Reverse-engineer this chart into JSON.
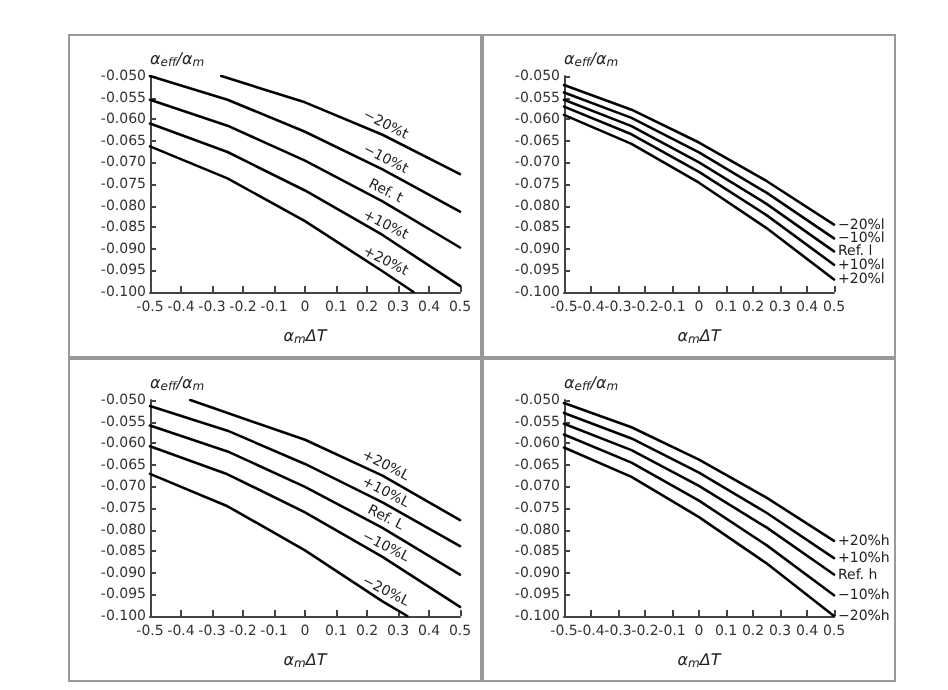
{
  "chart_data": [
    {
      "type": "line",
      "xlabel": "α$_{m}$ΔT",
      "ylabel": "α$_{eff}$/α$_{m}$",
      "xlim": [
        -0.5,
        0.5
      ],
      "xticks": [
        -0.5,
        -0.4,
        -0.3,
        -0.2,
        -0.1,
        0,
        0.1,
        0.2,
        0.3,
        0.4,
        0.5
      ],
      "ylim": [
        -0.1,
        -0.05
      ],
      "yticks": [
        {
          "value": -0.1,
          "label": "-0.100"
        },
        {
          "value": -0.095,
          "label": "-0.095"
        },
        {
          "value": -0.09,
          "label": "-0.090"
        },
        {
          "value": -0.085,
          "label": "-0.085"
        },
        {
          "value": -0.08,
          "label": "-0.080"
        },
        {
          "value": -0.075,
          "label": "-0.075"
        },
        {
          "value": -0.07,
          "label": "-0.070"
        },
        {
          "value": -0.065,
          "label": "-0.065"
        },
        {
          "value": -0.06,
          "label": "-0.060"
        },
        {
          "value": -0.055,
          "label": "-0.055"
        },
        {
          "value": -0.05,
          "label": "-0.050"
        }
      ],
      "grid": false,
      "legend": false,
      "marker": "none",
      "line_style": "solid",
      "x": [
        -0.5,
        -0.25,
        0,
        0.25,
        0.5
      ],
      "series": [
        {
          "name": "−20%t",
          "color": "#000000",
          "x": [
            -0.27,
            0,
            0.25,
            0.5
          ],
          "values": [
            -0.05,
            -0.0561,
            -0.0636,
            -0.0727
          ]
        },
        {
          "name": "−10%t",
          "color": "#000000",
          "values": [
            -0.05,
            -0.0555,
            -0.0629,
            -0.0716,
            -0.0814
          ]
        },
        {
          "name": "Ref. t",
          "color": "#000000",
          "values": [
            -0.0555,
            -0.0615,
            -0.0696,
            -0.079,
            -0.0897
          ]
        },
        {
          "name": "+10%t",
          "color": "#000000",
          "values": [
            -0.061,
            -0.0676,
            -0.0765,
            -0.0868,
            -0.0986
          ]
        },
        {
          "name": "+20%t",
          "color": "#000000",
          "x": [
            -0.5,
            -0.25,
            0,
            0.25,
            0.35
          ],
          "values": [
            -0.0663,
            -0.0737,
            -0.0836,
            -0.0952,
            -0.1
          ]
        }
      ]
    },
    {
      "type": "line",
      "xlabel": "α$_{m}$ΔT",
      "ylabel": "α$_{eff}$/α$_{m}$",
      "xlim": [
        -0.5,
        0.5
      ],
      "xticks": [
        -0.5,
        -0.4,
        -0.3,
        -0.2,
        -0.1,
        0,
        0.1,
        0.2,
        0.3,
        0.4,
        0.5
      ],
      "ylim": [
        -0.1,
        -0.05
      ],
      "yticks": [
        {
          "value": -0.1,
          "label": "-0.100"
        },
        {
          "value": -0.095,
          "label": "-0.095"
        },
        {
          "value": -0.09,
          "label": "-0.090"
        },
        {
          "value": -0.085,
          "label": "-0.085"
        },
        {
          "value": -0.08,
          "label": "-0.080"
        },
        {
          "value": -0.075,
          "label": "-0.075"
        },
        {
          "value": -0.07,
          "label": "-0.070"
        },
        {
          "value": -0.065,
          "label": "-0.065"
        },
        {
          "value": -0.06,
          "label": "-0.060"
        },
        {
          "value": -0.055,
          "label": "-0.055"
        },
        {
          "value": -0.05,
          "label": "-0.050"
        }
      ],
      "grid": false,
      "legend": false,
      "marker": "none",
      "line_style": "solid",
      "x": [
        -0.5,
        -0.25,
        0,
        0.25,
        0.5
      ],
      "series": [
        {
          "name": "−20%l",
          "color": "#000000",
          "values": [
            -0.0521,
            -0.0578,
            -0.0654,
            -0.0743,
            -0.0844
          ]
        },
        {
          "name": "−10%l",
          "color": "#000000",
          "values": [
            -0.0538,
            -0.0597,
            -0.0677,
            -0.077,
            -0.0876
          ]
        },
        {
          "name": "Ref. l",
          "color": "#000000",
          "values": [
            -0.0555,
            -0.0616,
            -0.07,
            -0.0796,
            -0.0906
          ]
        },
        {
          "name": "+10%l",
          "color": "#000000",
          "values": [
            -0.0571,
            -0.0635,
            -0.0722,
            -0.0822,
            -0.0937
          ]
        },
        {
          "name": "+20%l",
          "color": "#000000",
          "values": [
            -0.059,
            -0.0657,
            -0.0747,
            -0.0852,
            -0.0971
          ]
        }
      ]
    },
    {
      "type": "line",
      "xlabel": "α$_{m}$ΔT",
      "ylabel": "α$_{eff}$/α$_{m}$",
      "xlim": [
        -0.5,
        0.5
      ],
      "xticks": [
        -0.5,
        -0.4,
        -0.3,
        -0.2,
        -0.1,
        0,
        0.1,
        0.2,
        0.3,
        0.4,
        0.5
      ],
      "ylim": [
        -0.1,
        -0.05
      ],
      "yticks": [
        {
          "value": -0.1,
          "label": "-0.100"
        },
        {
          "value": -0.095,
          "label": "-0.095"
        },
        {
          "value": -0.09,
          "label": "-0.090"
        },
        {
          "value": -0.085,
          "label": "-0.085"
        },
        {
          "value": -0.08,
          "label": "-0.080"
        },
        {
          "value": -0.075,
          "label": "-0.075"
        },
        {
          "value": -0.07,
          "label": "-0.070"
        },
        {
          "value": -0.065,
          "label": "-0.065"
        },
        {
          "value": -0.06,
          "label": "-0.060"
        },
        {
          "value": -0.055,
          "label": "-0.055"
        },
        {
          "value": -0.05,
          "label": "-0.050"
        }
      ],
      "grid": false,
      "legend": false,
      "marker": "none",
      "line_style": "solid",
      "x": [
        -0.5,
        -0.25,
        0,
        0.25,
        0.5
      ],
      "series": [
        {
          "name": "+20%L",
          "color": "#000000",
          "x": [
            -0.37,
            0,
            0.25,
            0.5
          ],
          "values": [
            -0.05,
            -0.0592,
            -0.0675,
            -0.0778
          ]
        },
        {
          "name": "+10%L",
          "color": "#000000",
          "values": [
            -0.0514,
            -0.0571,
            -0.0648,
            -0.0737,
            -0.0838
          ]
        },
        {
          "name": "Ref. L",
          "color": "#000000",
          "values": [
            -0.0559,
            -0.0619,
            -0.0701,
            -0.0796,
            -0.0904
          ]
        },
        {
          "name": "−10%L",
          "color": "#000000",
          "values": [
            -0.0607,
            -0.0672,
            -0.076,
            -0.0863,
            -0.0979
          ]
        },
        {
          "name": "−20%L",
          "color": "#000000",
          "x": [
            -0.5,
            -0.25,
            0,
            0.25,
            0.33
          ],
          "values": [
            -0.0671,
            -0.0746,
            -0.0848,
            -0.0966,
            -0.1
          ]
        }
      ]
    },
    {
      "type": "line",
      "xlabel": "α$_{m}$ΔT",
      "ylabel": "α$_{eff}$/α$_{m}$",
      "xlim": [
        -0.5,
        0.5
      ],
      "xticks": [
        -0.5,
        -0.4,
        -0.3,
        -0.2,
        -0.1,
        0,
        0.1,
        0.2,
        0.3,
        0.4,
        0.5
      ],
      "ylim": [
        -0.1,
        -0.05
      ],
      "yticks": [
        {
          "value": -0.1,
          "label": "-0.100"
        },
        {
          "value": -0.095,
          "label": "-0.095"
        },
        {
          "value": -0.09,
          "label": "-0.090"
        },
        {
          "value": -0.085,
          "label": "-0.085"
        },
        {
          "value": -0.08,
          "label": "-0.080"
        },
        {
          "value": -0.075,
          "label": "-0.075"
        },
        {
          "value": -0.07,
          "label": "-0.070"
        },
        {
          "value": -0.065,
          "label": "-0.065"
        },
        {
          "value": -0.06,
          "label": "-0.060"
        },
        {
          "value": -0.055,
          "label": "-0.055"
        },
        {
          "value": -0.05,
          "label": "-0.050"
        }
      ],
      "grid": false,
      "legend": false,
      "marker": "none",
      "line_style": "solid",
      "x": [
        -0.5,
        -0.25,
        0,
        0.25,
        0.5
      ],
      "series": [
        {
          "name": "+20%h",
          "color": "#000000",
          "values": [
            -0.0507,
            -0.0563,
            -0.0638,
            -0.0726,
            -0.0826
          ]
        },
        {
          "name": "+10%h",
          "color": "#000000",
          "values": [
            -0.053,
            -0.0589,
            -0.0668,
            -0.0761,
            -0.0866
          ]
        },
        {
          "name": "Ref. h",
          "color": "#000000",
          "values": [
            -0.0555,
            -0.0616,
            -0.0699,
            -0.0795,
            -0.0904
          ]
        },
        {
          "name": "−10%h",
          "color": "#000000",
          "values": [
            -0.058,
            -0.0645,
            -0.0733,
            -0.0836,
            -0.0952
          ]
        },
        {
          "name": "−20%h",
          "color": "#000000",
          "values": [
            -0.061,
            -0.0678,
            -0.0771,
            -0.0878,
            -0.1
          ]
        }
      ]
    }
  ]
}
